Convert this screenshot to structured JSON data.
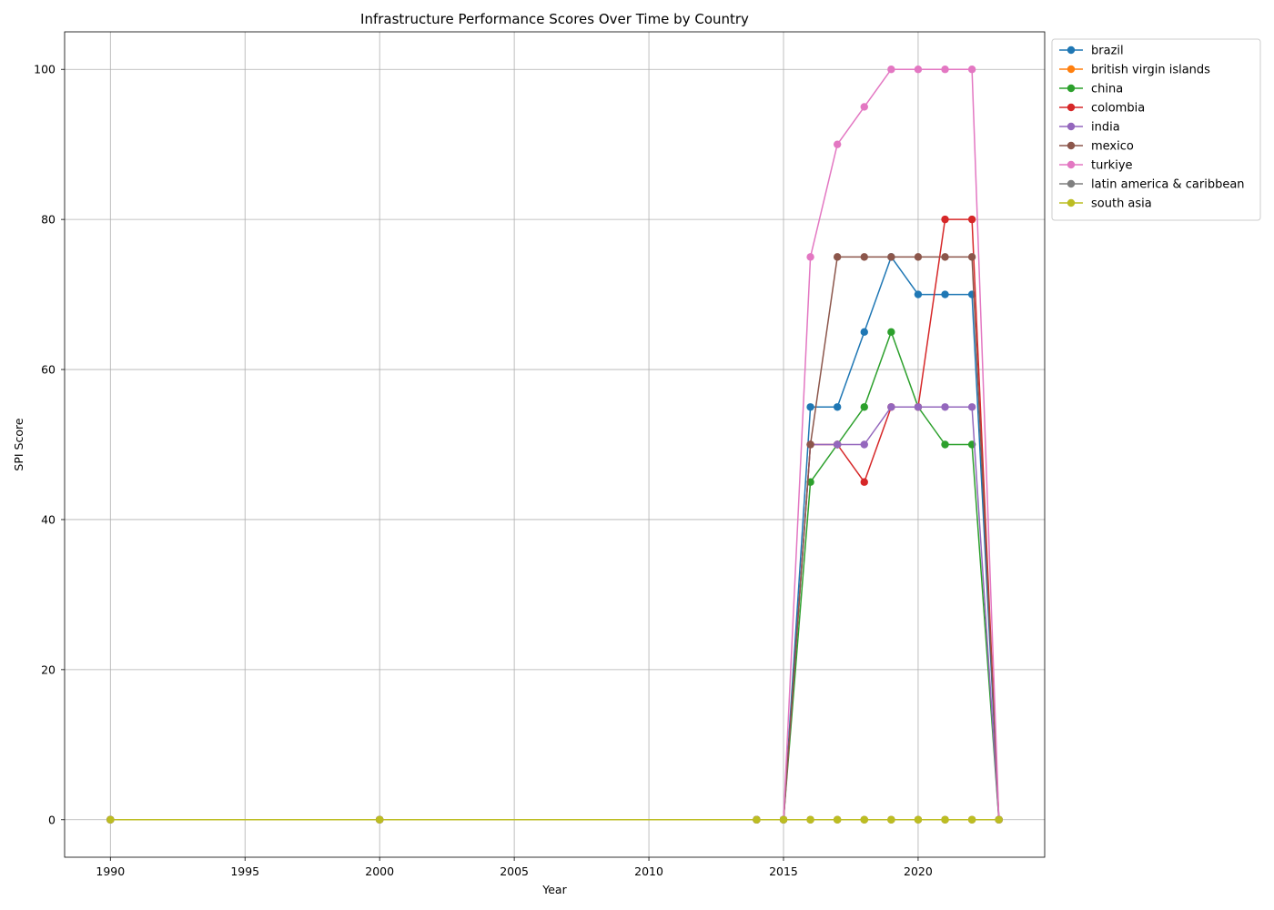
{
  "chart_data": {
    "type": "line",
    "title": "Infrastructure Performance Scores Over Time by Country",
    "xlabel": "Year",
    "ylabel": "SPI Score",
    "xlim": [
      1988.3,
      2024.7
    ],
    "ylim": [
      -5,
      105
    ],
    "xticks": [
      1990,
      1995,
      2000,
      2005,
      2010,
      2015,
      2020
    ],
    "yticks": [
      0,
      20,
      40,
      60,
      80,
      100
    ],
    "grid": true,
    "legend_position": "outside-top-right",
    "x": [
      1990,
      2000,
      2014,
      2015,
      2016,
      2017,
      2018,
      2019,
      2020,
      2021,
      2022,
      2023
    ],
    "series": [
      {
        "name": "brazil",
        "color": "#1f77b4",
        "values": [
          0,
          0,
          0,
          0,
          55,
          55,
          65,
          75,
          70,
          70,
          70,
          0
        ]
      },
      {
        "name": "british virgin islands",
        "color": "#ff7f0e",
        "values": [
          0,
          0,
          0,
          0,
          0,
          0,
          0,
          0,
          0,
          0,
          0,
          0
        ]
      },
      {
        "name": "china",
        "color": "#2ca02c",
        "values": [
          0,
          0,
          0,
          0,
          45,
          50,
          55,
          65,
          55,
          50,
          50,
          0
        ]
      },
      {
        "name": "colombia",
        "color": "#d62728",
        "values": [
          0,
          0,
          0,
          0,
          50,
          50,
          45,
          55,
          55,
          80,
          80,
          0
        ]
      },
      {
        "name": "india",
        "color": "#9467bd",
        "values": [
          0,
          0,
          0,
          0,
          50,
          50,
          50,
          55,
          55,
          55,
          55,
          0
        ]
      },
      {
        "name": "mexico",
        "color": "#8c564b",
        "values": [
          0,
          0,
          0,
          0,
          50,
          75,
          75,
          75,
          75,
          75,
          75,
          0
        ]
      },
      {
        "name": "turkiye",
        "color": "#e377c2",
        "values": [
          0,
          0,
          0,
          0,
          75,
          90,
          95,
          100,
          100,
          100,
          100,
          0
        ]
      },
      {
        "name": "latin america & caribbean",
        "color": "#7f7f7f",
        "values": [
          0,
          0,
          0,
          0,
          0,
          0,
          0,
          0,
          0,
          0,
          0,
          0
        ]
      },
      {
        "name": "south asia",
        "color": "#bcbd22",
        "values": [
          0,
          0,
          0,
          0,
          0,
          0,
          0,
          0,
          0,
          0,
          0,
          0
        ]
      }
    ]
  }
}
